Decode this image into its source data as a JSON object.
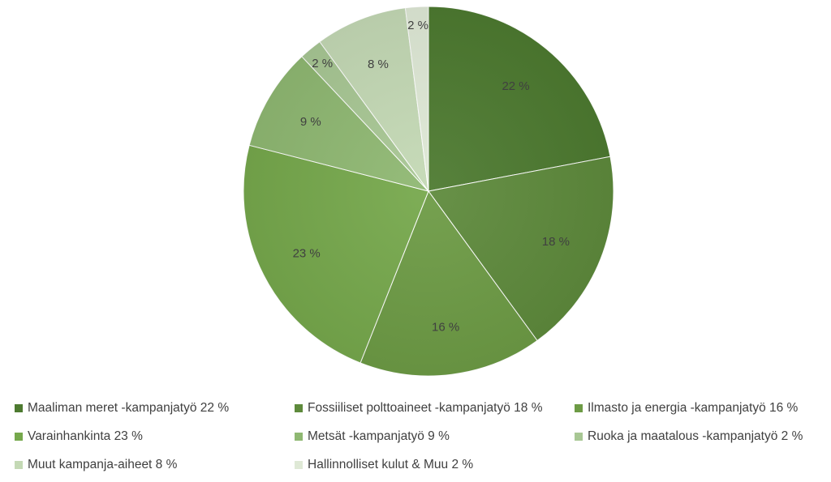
{
  "chart_data": {
    "type": "pie",
    "title": "",
    "slices": [
      {
        "label": "Maaliman meret -kampanjatyö",
        "value": 22,
        "data_label": "22 %",
        "legend_text": "Maaliman meret -kampanjatyö 22 %",
        "color": "#4d7a30"
      },
      {
        "label": "Fossiiliset polttoaineet -kampanjatyö",
        "value": 18,
        "data_label": "18 %",
        "legend_text": "Fossiiliset polttoaineet -kampanjatyö 18 %",
        "color": "#5e8a3c"
      },
      {
        "label": "Ilmasto ja energia -kampanjatyö",
        "value": 16,
        "data_label": "16 %",
        "legend_text": "Ilmasto ja energia -kampanjatyö 16 %",
        "color": "#6d9b45"
      },
      {
        "label": "Varainhankinta",
        "value": 23,
        "data_label": "23 %",
        "legend_text": "Varainhankinta 23 %",
        "color": "#76a84c"
      },
      {
        "label": "Metsät -kampanjatyö",
        "value": 9,
        "data_label": "9 %",
        "legend_text": "Metsät -kampanjatyö 9 %",
        "color": "#8fb872"
      },
      {
        "label": "Ruoka ja maatalous -kampanjatyö",
        "value": 2,
        "data_label": "2 %",
        "legend_text": "Ruoka ja maatalous -kampanjatyö 2 %",
        "color": "#a8c794"
      },
      {
        "label": "Muut kampanja-aiheet",
        "value": 8,
        "data_label": "8 %",
        "legend_text": "Muut kampanja-aiheet 8 %",
        "color": "#c4d9b5"
      },
      {
        "label": "Hallinnolliset kulut & Muu",
        "value": 2,
        "data_label": "2 %",
        "legend_text": "Hallinnolliset kulut & Muu 2 %",
        "color": "#dfe9d6"
      }
    ],
    "start_angle_deg": 0,
    "direction": "clockwise",
    "legend_position": "bottom"
  }
}
